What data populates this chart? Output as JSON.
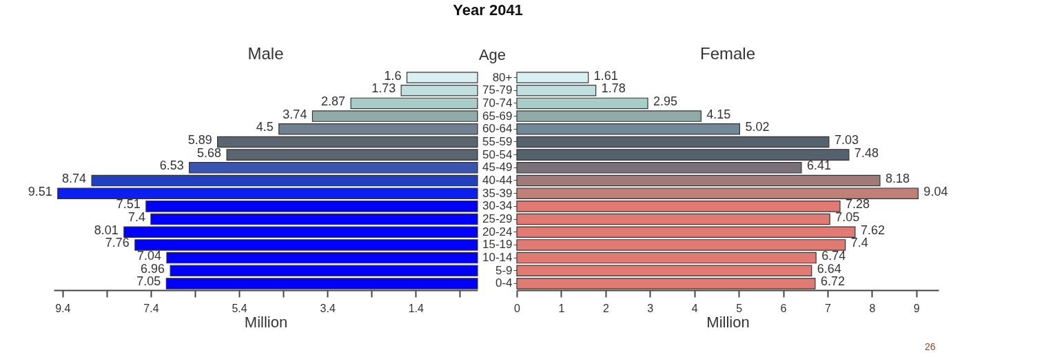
{
  "chart_data": [
    {
      "type": "bar",
      "orientation": "horizontal",
      "title": "Year 2041",
      "subtitle": "Male",
      "xlabel": "Million",
      "categories": [
        "80+",
        "75-79",
        "70-74",
        "65-69",
        "60-64",
        "55-59",
        "50-54",
        "45-49",
        "40-44",
        "35-39",
        "30-34",
        "25-29",
        "20-24",
        "15-19",
        "10-14",
        "5-9",
        "0-4"
      ],
      "values": [
        1.6,
        1.73,
        2.87,
        3.74,
        4.5,
        5.89,
        5.68,
        6.53,
        8.74,
        9.51,
        7.51,
        7.4,
        8.01,
        7.76,
        7.04,
        6.96,
        7.05
      ],
      "colors": [
        "#d8f0f0",
        "#c0e0e0",
        "#a8ccc8",
        "#90aaa8",
        "#708090",
        "#5a6570",
        "#5a6570",
        "#3a55b0",
        "#2040c0",
        "#0a1ff0",
        "#0000ff",
        "#0000ff",
        "#0000ff",
        "#0000ff",
        "#0000ff",
        "#0000ff",
        "#0000ff"
      ],
      "xlim": [
        9.6,
        0
      ],
      "xticks": [
        9.4,
        {
          "value": 8.4,
          "label": null
        },
        7.4,
        {
          "value": 6.4,
          "label": null
        },
        5.4,
        {
          "value": 4.4,
          "label": null
        },
        3.4,
        {
          "value": 2.4,
          "label": null
        },
        1.4,
        {
          "value": 0.4,
          "label": null
        }
      ],
      "data_labels": true,
      "grid": false,
      "tick_labels": "x"
    },
    {
      "type": "bar",
      "orientation": "horizontal",
      "subtitle": "Female",
      "xlabel": "Million",
      "ylabel": "Age",
      "annotations": [
        "26"
      ],
      "categories": [
        "80+",
        "75-79",
        "70-74",
        "65-69",
        "60-64",
        "55-59",
        "50-54",
        "45-49",
        "40-44",
        "35-39",
        "30-34",
        "25-29",
        "20-24",
        "15-19",
        "10-14",
        "5-9",
        "0-4"
      ],
      "values": [
        1.61,
        1.78,
        2.95,
        4.15,
        5.02,
        7.03,
        7.48,
        6.41,
        8.18,
        9.04,
        7.28,
        7.05,
        7.62,
        7.4,
        6.74,
        6.64,
        6.72
      ],
      "colors": [
        "#d8f0f0",
        "#c0e0e0",
        "#a8ccc8",
        "#90aaa8",
        "#708898",
        "#55626e",
        "#55626e",
        "#7a7078",
        "#a07a78",
        "#c08078",
        "#e07a72",
        "#e07a72",
        "#e07a72",
        "#e07a72",
        "#e07a72",
        "#e07a72",
        "#e07a72"
      ],
      "xlim": [
        0,
        9.5
      ],
      "xticks": [
        0,
        1,
        2,
        3,
        4,
        5,
        6,
        7,
        8,
        9
      ],
      "data_labels": true,
      "grid": false
    }
  ]
}
